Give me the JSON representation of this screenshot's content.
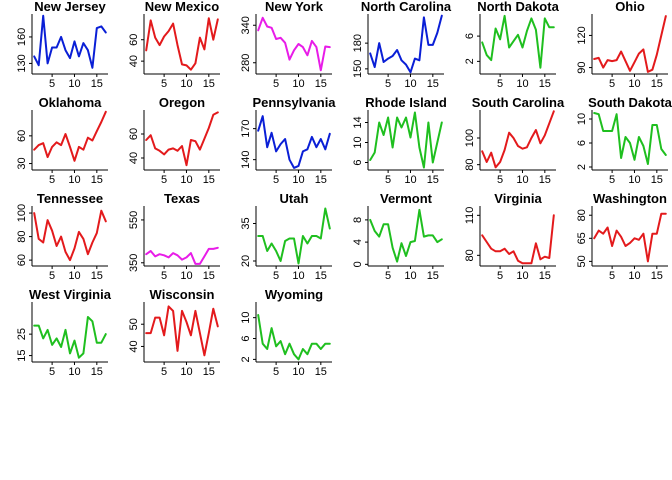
{
  "colors": {
    "red": "#e31a1c",
    "blue": "#0a1fd6",
    "green": "#1fbf1f",
    "magenta": "#e81ce8"
  },
  "x_ticks": [
    "5",
    "10",
    "15"
  ],
  "chart_data": [
    {
      "type": "line",
      "title": "New Jersey",
      "color": "blue",
      "ylim": [
        118,
        186
      ],
      "y_ticks": [
        "130",
        "160"
      ],
      "x": [
        1,
        2,
        3,
        4,
        5,
        6,
        7,
        8,
        9,
        10,
        11,
        12,
        13,
        14,
        15,
        16,
        17
      ],
      "values": [
        138,
        128,
        184,
        130,
        148,
        148,
        160,
        145,
        136,
        155,
        138,
        153,
        145,
        125,
        170,
        172,
        165
      ]
    },
    {
      "type": "line",
      "title": "New Mexico",
      "color": "red",
      "ylim": [
        28,
        84
      ],
      "y_ticks": [
        "40",
        "60"
      ],
      "x": [
        1,
        2,
        3,
        4,
        5,
        6,
        7,
        8,
        9,
        10,
        11,
        12,
        13,
        14,
        15,
        16,
        17
      ],
      "values": [
        50,
        78,
        62,
        55,
        63,
        68,
        75,
        55,
        37,
        36,
        32,
        38,
        62,
        51,
        80,
        60,
        79
      ]
    },
    {
      "type": "line",
      "title": "New York",
      "color": "magenta",
      "ylim": [
        262,
        358
      ],
      "y_ticks": [
        "280",
        "340"
      ],
      "x": [
        1,
        2,
        3,
        4,
        5,
        6,
        7,
        8,
        9,
        10,
        11,
        12,
        13,
        14,
        15,
        16,
        17
      ],
      "values": [
        332,
        352,
        338,
        336,
        318,
        320,
        312,
        285,
        300,
        310,
        305,
        292,
        315,
        305,
        268,
        306,
        305
      ]
    },
    {
      "type": "line",
      "title": "North Carolina",
      "color": "blue",
      "ylim": [
        144,
        214
      ],
      "y_ticks": [
        "150",
        "180"
      ],
      "x": [
        1,
        2,
        3,
        4,
        5,
        6,
        7,
        8,
        9,
        10,
        11,
        12,
        13,
        14,
        15,
        16,
        17
      ],
      "values": [
        168,
        152,
        180,
        158,
        162,
        165,
        172,
        160,
        155,
        146,
        162,
        160,
        210,
        178,
        178,
        192,
        212
      ]
    },
    {
      "type": "line",
      "title": "North Dakota",
      "color": "green",
      "ylim": [
        0,
        9.5
      ],
      "y_ticks": [
        "2",
        "6"
      ],
      "x": [
        1,
        2,
        3,
        4,
        5,
        6,
        7,
        8,
        9,
        10,
        11,
        12,
        13,
        14,
        15,
        16,
        17
      ],
      "values": [
        5,
        3,
        2.2,
        7.2,
        5.5,
        9.2,
        4.2,
        5.2,
        6.2,
        4.2,
        6.8,
        8.8,
        7.0,
        1.0,
        8.8,
        7.4,
        7.4
      ]
    },
    {
      "type": "line",
      "title": "Ohio",
      "color": "red",
      "ylim": [
        84,
        140
      ],
      "y_ticks": [
        "90",
        "120"
      ],
      "x": [
        1,
        2,
        3,
        4,
        5,
        6,
        7,
        8,
        9,
        10,
        11,
        12,
        13,
        14,
        15,
        16,
        17
      ],
      "values": [
        98,
        99,
        90,
        97,
        96,
        97,
        105,
        96,
        87,
        95,
        103,
        107,
        86,
        88,
        102,
        120,
        138
      ]
    },
    {
      "type": "line",
      "title": "Oklahoma",
      "color": "red",
      "ylim": [
        23,
        88
      ],
      "y_ticks": [
        "30",
        "60"
      ],
      "x": [
        1,
        2,
        3,
        4,
        5,
        6,
        7,
        8,
        9,
        10,
        11,
        12,
        13,
        14,
        15,
        16,
        17
      ],
      "values": [
        45,
        50,
        52,
        37,
        48,
        53,
        50,
        62,
        48,
        33,
        48,
        45,
        58,
        55,
        65,
        75,
        86
      ]
    },
    {
      "type": "line",
      "title": "Oregon",
      "color": "red",
      "ylim": [
        30,
        80
      ],
      "y_ticks": [
        "40",
        "60"
      ],
      "x": [
        1,
        2,
        3,
        4,
        5,
        6,
        7,
        8,
        9,
        10,
        11,
        12,
        13,
        14,
        15,
        16,
        17
      ],
      "values": [
        55,
        59,
        48,
        46,
        43,
        47,
        48,
        46,
        50,
        34,
        55,
        54,
        47,
        56,
        65,
        76,
        78
      ]
    },
    {
      "type": "line",
      "title": "Pennsylvania",
      "color": "blue",
      "ylim": [
        130,
        188
      ],
      "y_ticks": [
        "140",
        "170"
      ],
      "x": [
        1,
        2,
        3,
        4,
        5,
        6,
        7,
        8,
        9,
        10,
        11,
        12,
        13,
        14,
        15,
        16,
        17
      ],
      "values": [
        168,
        182,
        152,
        166,
        148,
        155,
        160,
        140,
        132,
        134,
        148,
        150,
        162,
        152,
        160,
        150,
        165
      ]
    },
    {
      "type": "line",
      "title": "Rhode Island",
      "color": "green",
      "ylim": [
        4.5,
        16.5
      ],
      "y_ticks": [
        "6",
        "10",
        "14"
      ],
      "x": [
        1,
        2,
        3,
        4,
        5,
        6,
        7,
        8,
        9,
        10,
        11,
        12,
        13,
        14,
        15,
        16,
        17
      ],
      "values": [
        6.5,
        8,
        14,
        11.5,
        15,
        9,
        15,
        13,
        15,
        11,
        16,
        9,
        5,
        14,
        6,
        10,
        14
      ]
    },
    {
      "type": "line",
      "title": "South Carolina",
      "color": "red",
      "ylim": [
        76,
        121
      ],
      "y_ticks": [
        "80",
        "100"
      ],
      "x": [
        1,
        2,
        3,
        4,
        5,
        6,
        7,
        8,
        9,
        10,
        11,
        12,
        13,
        14,
        15,
        16,
        17
      ],
      "values": [
        90,
        82,
        89,
        78,
        82,
        91,
        104,
        100,
        94,
        92,
        93,
        100,
        106,
        96,
        102,
        111,
        120
      ]
    },
    {
      "type": "line",
      "title": "South Dakota",
      "color": "green",
      "ylim": [
        1.5,
        11.5
      ],
      "y_ticks": [
        "2",
        "6",
        "10"
      ],
      "x": [
        1,
        2,
        3,
        4,
        5,
        6,
        7,
        8,
        9,
        10,
        11,
        12,
        13,
        14,
        15,
        16,
        17
      ],
      "values": [
        11,
        10.8,
        8,
        8,
        8,
        10.8,
        3.5,
        7,
        6,
        3.2,
        7,
        5.5,
        2.5,
        9,
        9,
        5,
        4
      ]
    },
    {
      "type": "line",
      "title": "Tennessee",
      "color": "red",
      "ylim": [
        55,
        106
      ],
      "y_ticks": [
        "60",
        "80",
        "100"
      ],
      "x": [
        1,
        2,
        3,
        4,
        5,
        6,
        7,
        8,
        9,
        10,
        11,
        12,
        13,
        14,
        15,
        16,
        17
      ],
      "values": [
        100,
        78,
        75,
        94,
        85,
        72,
        80,
        67,
        60,
        70,
        84,
        78,
        65,
        75,
        83,
        102,
        93
      ]
    },
    {
      "type": "line",
      "title": "Texas",
      "color": "magenta",
      "ylim": [
        335,
        615
      ],
      "y_ticks": [
        "350",
        "550"
      ],
      "x": [
        1,
        2,
        3,
        4,
        5,
        6,
        7,
        8,
        9,
        10,
        11,
        12,
        13,
        14,
        15,
        16,
        17
      ],
      "values": [
        390,
        405,
        380,
        390,
        385,
        375,
        395,
        385,
        365,
        375,
        395,
        345,
        345,
        380,
        415,
        415,
        420
      ]
    },
    {
      "type": "line",
      "title": "Utah",
      "color": "green",
      "ylim": [
        18,
        42
      ],
      "y_ticks": [
        "20",
        "35"
      ],
      "x": [
        1,
        2,
        3,
        4,
        5,
        6,
        7,
        8,
        9,
        10,
        11,
        12,
        13,
        14,
        15,
        16,
        17
      ],
      "values": [
        30,
        30,
        24,
        27,
        24,
        20,
        28,
        29,
        29,
        19,
        30,
        27,
        30,
        30,
        29,
        41,
        33
      ]
    },
    {
      "type": "line",
      "title": "Vermont",
      "color": "green",
      "ylim": [
        -0.3,
        10.5
      ],
      "y_ticks": [
        "0",
        "4",
        "8"
      ],
      "x": [
        1,
        2,
        3,
        4,
        5,
        6,
        7,
        8,
        9,
        10,
        11,
        12,
        13,
        14,
        15,
        16,
        17
      ],
      "values": [
        8,
        6,
        5,
        7.2,
        7.2,
        3,
        0.5,
        3.8,
        1.5,
        4,
        4.2,
        9.8,
        5,
        5.2,
        5.2,
        4,
        4.5
      ]
    },
    {
      "type": "line",
      "title": "Virginia",
      "color": "red",
      "ylim": [
        72,
        117
      ],
      "y_ticks": [
        "80",
        "110"
      ],
      "x": [
        1,
        2,
        3,
        4,
        5,
        6,
        7,
        8,
        9,
        10,
        11,
        12,
        13,
        14,
        15,
        16,
        17
      ],
      "values": [
        95,
        90,
        85,
        83,
        83,
        85,
        81,
        83,
        76,
        74,
        74,
        74,
        89,
        77,
        79,
        78,
        110
      ]
    },
    {
      "type": "line",
      "title": "Washington",
      "color": "red",
      "ylim": [
        47,
        86
      ],
      "y_ticks": [
        "50",
        "65",
        "80"
      ],
      "x": [
        1,
        2,
        3,
        4,
        5,
        6,
        7,
        8,
        9,
        10,
        11,
        12,
        13,
        14,
        15,
        16,
        17
      ],
      "values": [
        65,
        70,
        68,
        72,
        60,
        70,
        66,
        60,
        62,
        65,
        64,
        68,
        50,
        68,
        68,
        81,
        81
      ]
    },
    {
      "type": "line",
      "title": "West Virginia",
      "color": "green",
      "ylim": [
        12,
        40
      ],
      "y_ticks": [
        "15",
        "25"
      ],
      "x": [
        1,
        2,
        3,
        4,
        5,
        6,
        7,
        8,
        9,
        10,
        11,
        12,
        13,
        14,
        15,
        16,
        17
      ],
      "values": [
        29,
        29,
        23,
        27,
        20,
        23,
        19,
        27,
        16,
        22,
        14,
        16,
        33,
        31,
        21,
        21,
        25
      ]
    },
    {
      "type": "line",
      "title": "Wisconsin",
      "color": "red",
      "ylim": [
        33,
        60
      ],
      "y_ticks": [
        "40",
        "50"
      ],
      "x": [
        1,
        2,
        3,
        4,
        5,
        6,
        7,
        8,
        9,
        10,
        11,
        12,
        13,
        14,
        15,
        16,
        17
      ],
      "values": [
        46,
        46,
        53,
        53,
        45,
        58,
        56,
        38,
        56,
        51,
        45,
        56,
        46,
        36,
        46,
        57,
        49
      ]
    },
    {
      "type": "line",
      "title": "Wyoming",
      "color": "green",
      "ylim": [
        1.5,
        13
      ],
      "y_ticks": [
        "2",
        "6",
        "10"
      ],
      "x": [
        1,
        2,
        3,
        4,
        5,
        6,
        7,
        8,
        9,
        10,
        11,
        12,
        13,
        14,
        15,
        16,
        17
      ],
      "values": [
        10.5,
        5,
        4,
        8,
        4.5,
        5.5,
        3,
        5,
        3,
        2,
        4,
        3,
        5,
        5,
        4,
        5,
        5
      ]
    }
  ]
}
